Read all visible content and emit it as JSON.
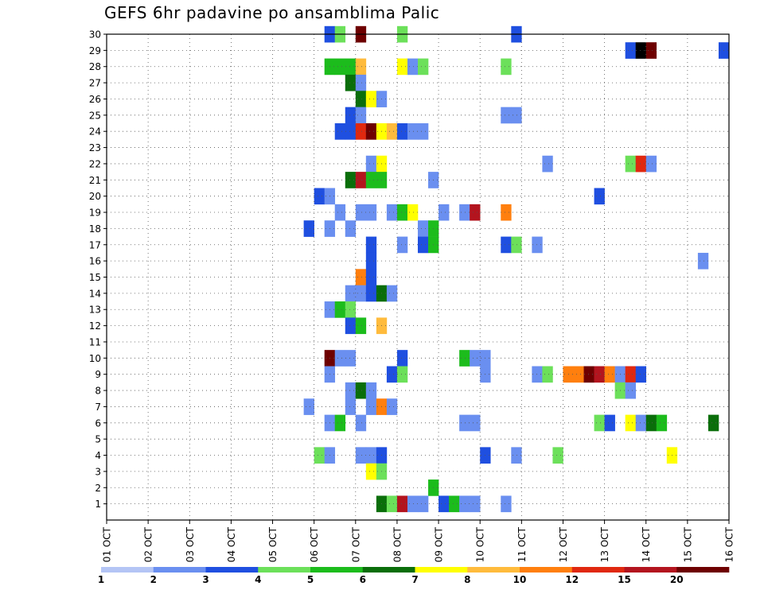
{
  "chart_data": {
    "type": "heatmap",
    "title": "GEFS 6hr padavine po ansamblima Palic",
    "xlabel": "",
    "ylabel": "",
    "x_range_days": [
      1,
      16
    ],
    "x_ticks": [
      "01 OCT",
      "02 OCT",
      "03 OCT",
      "04 OCT",
      "05 OCT",
      "06 OCT",
      "07 OCT",
      "08 OCT",
      "09 OCT",
      "10 OCT",
      "11 OCT",
      "12 OCT",
      "13 OCT",
      "14 OCT",
      "15 OCT",
      "16 OCT"
    ],
    "y_ticks": [
      "1",
      "2",
      "3",
      "4",
      "5",
      "6",
      "7",
      "8",
      "9",
      "10",
      "11",
      "12",
      "13",
      "14",
      "15",
      "16",
      "17",
      "18",
      "19",
      "20",
      "21",
      "22",
      "23",
      "24",
      "25",
      "26",
      "27",
      "28",
      "29",
      "30"
    ],
    "y_range": [
      0,
      30
    ],
    "grid": true,
    "colorbar": {
      "colors": [
        "#b4c5f5",
        "#6a8ff0",
        "#1f4fe0",
        "#6ce05a",
        "#1cbc1c",
        "#0a6e0a",
        "#ffff00",
        "#ffbb3c",
        "#ff7f0e",
        "#e0280f",
        "#b3141e",
        "#6e0000"
      ],
      "labels": [
        "1",
        "2",
        "3",
        "4",
        "5",
        "6",
        "7",
        "8",
        "10",
        "12",
        "15",
        "20"
      ]
    },
    "cells": [
      [
        30,
        6.25,
        2
      ],
      [
        30,
        6.5,
        3
      ],
      [
        30,
        7.0,
        11
      ],
      [
        30,
        8.0,
        3
      ],
      [
        30,
        10.75,
        2
      ],
      [
        29,
        13.5,
        2
      ],
      [
        29,
        13.75,
        12
      ],
      [
        29,
        14.0,
        11
      ],
      [
        29,
        15.75,
        2
      ],
      [
        28,
        6.25,
        4
      ],
      [
        28,
        6.5,
        4
      ],
      [
        28,
        6.75,
        4
      ],
      [
        28,
        7.0,
        7
      ],
      [
        28,
        8.0,
        6
      ],
      [
        28,
        8.25,
        1
      ],
      [
        28,
        8.5,
        3
      ],
      [
        28,
        10.5,
        3
      ],
      [
        27,
        6.75,
        5
      ],
      [
        27,
        7.0,
        1
      ],
      [
        26,
        7.0,
        5
      ],
      [
        26,
        7.25,
        6
      ],
      [
        26,
        7.5,
        1
      ],
      [
        25,
        6.75,
        2
      ],
      [
        25,
        7.0,
        1
      ],
      [
        25,
        10.5,
        1
      ],
      [
        25,
        10.75,
        1
      ],
      [
        24,
        6.5,
        2
      ],
      [
        24,
        6.75,
        2
      ],
      [
        24,
        7.0,
        9
      ],
      [
        24,
        7.25,
        11
      ],
      [
        24,
        7.5,
        6
      ],
      [
        24,
        7.75,
        7
      ],
      [
        24,
        8.0,
        2
      ],
      [
        24,
        8.25,
        1
      ],
      [
        24,
        8.5,
        1
      ],
      [
        22,
        7.25,
        1
      ],
      [
        22,
        7.5,
        6
      ],
      [
        22,
        11.5,
        1
      ],
      [
        22,
        13.5,
        3
      ],
      [
        22,
        13.75,
        9
      ],
      [
        22,
        14.0,
        1
      ],
      [
        21,
        6.75,
        5
      ],
      [
        21,
        7.0,
        10
      ],
      [
        21,
        7.25,
        4
      ],
      [
        21,
        7.5,
        4
      ],
      [
        21,
        8.75,
        1
      ],
      [
        20,
        6.0,
        2
      ],
      [
        20,
        6.25,
        1
      ],
      [
        20,
        12.75,
        2
      ],
      [
        19,
        6.5,
        1
      ],
      [
        19,
        7.0,
        1
      ],
      [
        19,
        7.25,
        1
      ],
      [
        19,
        7.75,
        1
      ],
      [
        19,
        8.0,
        4
      ],
      [
        19,
        8.25,
        6
      ],
      [
        19,
        9.0,
        1
      ],
      [
        19,
        9.5,
        1
      ],
      [
        19,
        9.75,
        10
      ],
      [
        19,
        10.5,
        8
      ],
      [
        18,
        5.75,
        2
      ],
      [
        18,
        6.25,
        1
      ],
      [
        18,
        6.75,
        1
      ],
      [
        18,
        8.5,
        1
      ],
      [
        18,
        8.75,
        4
      ],
      [
        17,
        7.25,
        2
      ],
      [
        17,
        8.0,
        1
      ],
      [
        17,
        8.5,
        2
      ],
      [
        17,
        8.75,
        4
      ],
      [
        17,
        10.5,
        2
      ],
      [
        17,
        10.75,
        3
      ],
      [
        17,
        11.25,
        1
      ],
      [
        16,
        7.25,
        2
      ],
      [
        16,
        15.25,
        1
      ],
      [
        15,
        7.0,
        8
      ],
      [
        15,
        7.25,
        2
      ],
      [
        14,
        6.75,
        1
      ],
      [
        14,
        7.0,
        1
      ],
      [
        14,
        7.25,
        2
      ],
      [
        14,
        7.5,
        5
      ],
      [
        14,
        7.75,
        1
      ],
      [
        13,
        6.25,
        1
      ],
      [
        13,
        6.5,
        4
      ],
      [
        13,
        6.75,
        3
      ],
      [
        12,
        6.75,
        2
      ],
      [
        12,
        7.0,
        4
      ],
      [
        12,
        7.5,
        7
      ],
      [
        10,
        6.25,
        11
      ],
      [
        10,
        6.5,
        1
      ],
      [
        10,
        6.75,
        1
      ],
      [
        10,
        8.0,
        2
      ],
      [
        10,
        9.5,
        4
      ],
      [
        10,
        9.75,
        1
      ],
      [
        10,
        10.0,
        1
      ],
      [
        9,
        6.25,
        1
      ],
      [
        9,
        7.75,
        2
      ],
      [
        9,
        8.0,
        3
      ],
      [
        9,
        10.0,
        1
      ],
      [
        9,
        11.25,
        1
      ],
      [
        9,
        11.5,
        3
      ],
      [
        9,
        12.0,
        8
      ],
      [
        9,
        12.25,
        8
      ],
      [
        9,
        12.5,
        11
      ],
      [
        9,
        12.75,
        10
      ],
      [
        9,
        13.0,
        8
      ],
      [
        9,
        13.25,
        1
      ],
      [
        9,
        13.5,
        9
      ],
      [
        9,
        13.75,
        2
      ],
      [
        8,
        6.75,
        1
      ],
      [
        8,
        7.0,
        5
      ],
      [
        8,
        7.25,
        1
      ],
      [
        8,
        13.25,
        3
      ],
      [
        8,
        13.5,
        1
      ],
      [
        7,
        5.75,
        1
      ],
      [
        7,
        6.75,
        1
      ],
      [
        7,
        7.25,
        1
      ],
      [
        7,
        7.5,
        8
      ],
      [
        7,
        7.75,
        1
      ],
      [
        6,
        6.25,
        1
      ],
      [
        6,
        6.5,
        4
      ],
      [
        6,
        7.0,
        1
      ],
      [
        6,
        9.5,
        1
      ],
      [
        6,
        9.75,
        1
      ],
      [
        6,
        12.75,
        3
      ],
      [
        6,
        13.0,
        2
      ],
      [
        6,
        13.5,
        6
      ],
      [
        6,
        13.75,
        1
      ],
      [
        6,
        14.0,
        5
      ],
      [
        6,
        14.25,
        4
      ],
      [
        6,
        15.5,
        5
      ],
      [
        4,
        6.0,
        3
      ],
      [
        4,
        6.25,
        1
      ],
      [
        4,
        7.0,
        1
      ],
      [
        4,
        7.25,
        1
      ],
      [
        4,
        7.5,
        2
      ],
      [
        4,
        10.0,
        2
      ],
      [
        4,
        10.75,
        1
      ],
      [
        4,
        11.75,
        3
      ],
      [
        4,
        14.5,
        6
      ],
      [
        3,
        7.25,
        6
      ],
      [
        3,
        7.5,
        3
      ],
      [
        2,
        8.75,
        4
      ],
      [
        1,
        7.5,
        5
      ],
      [
        1,
        7.75,
        3
      ],
      [
        1,
        8.0,
        10
      ],
      [
        1,
        8.25,
        1
      ],
      [
        1,
        8.5,
        1
      ],
      [
        1,
        9.0,
        2
      ],
      [
        1,
        9.25,
        4
      ],
      [
        1,
        9.5,
        1
      ],
      [
        1,
        9.75,
        1
      ],
      [
        1,
        10.5,
        1
      ]
    ]
  }
}
